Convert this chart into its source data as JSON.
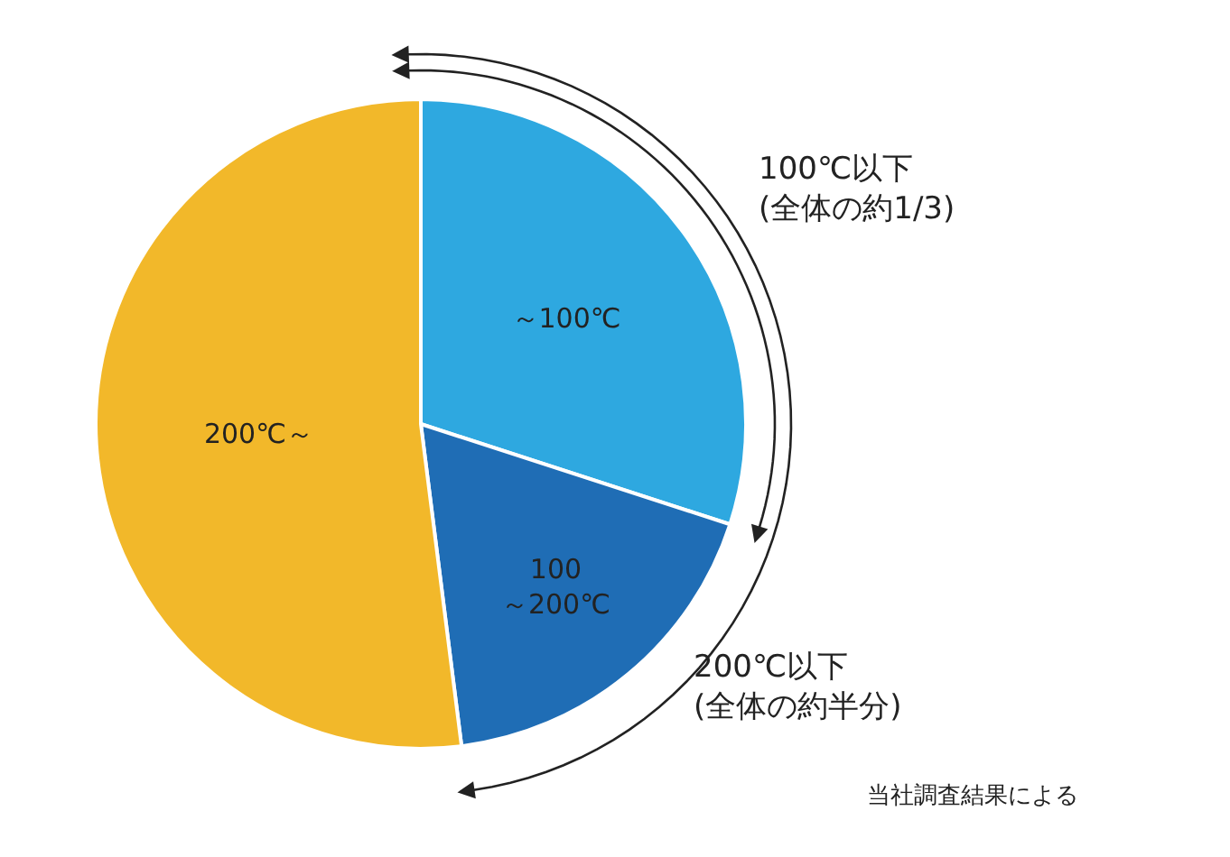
{
  "chart_data": {
    "type": "pie",
    "categories": [
      "～100℃",
      "100\n～200℃",
      "200℃～"
    ],
    "values": [
      30,
      18,
      52
    ],
    "colors": [
      "#2ea8e0",
      "#1f6db5",
      "#f2b82a"
    ],
    "annotations": [
      "100℃以下\n(全体の約1/3)",
      "200℃以下\n(全体の約半分)",
      "当社調査結果による"
    ],
    "legend": false
  }
}
